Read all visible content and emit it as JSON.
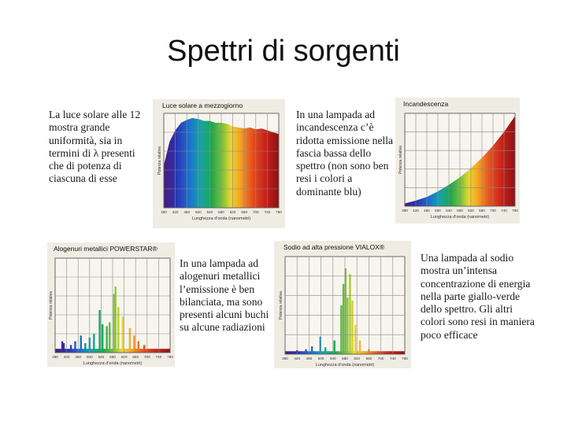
{
  "slide": {
    "title": "Spettri di sorgenti"
  },
  "descriptions": [
    "La luce solare alle 12 mostra grande uniformità, sia in termini di λ presenti che di potenza di ciascuna di esse",
    "In una lampada ad incandescenza c’è ridotta emissione nella fascia bassa dello spettro (non sono ben resi i colori a dominante blu)",
    "In una lampada ad alogenuri metallici l’emissione è ben bilanciata, ma sono presenti alcuni buchi su alcune radiazioni",
    "Una lampada al sodio mostra un’intensa concentrazione di energia nella parte giallo-verde dello spettro. Gli altri colori sono resi in maniera poco efficace"
  ],
  "chart_data": [
    {
      "type": "area",
      "title": "Luce solare a mezzogiorno",
      "ylabel": "Potenza relativa",
      "xlabel": "Lunghezza d'onda (nanometri)",
      "x_ticks": [
        "380",
        "420",
        "460",
        "500",
        "540",
        "580",
        "620",
        "660",
        "700",
        "740",
        "780"
      ],
      "x": [
        380,
        400,
        420,
        440,
        460,
        480,
        500,
        520,
        540,
        560,
        580,
        600,
        620,
        640,
        660,
        680,
        700,
        720,
        740,
        760,
        780
      ],
      "values": [
        0.45,
        0.7,
        0.82,
        0.9,
        0.93,
        0.95,
        0.94,
        0.92,
        0.92,
        0.9,
        0.9,
        0.89,
        0.86,
        0.85,
        0.84,
        0.85,
        0.83,
        0.84,
        0.82,
        0.8,
        0.78
      ],
      "ylim": [
        0,
        1
      ]
    },
    {
      "type": "area",
      "title": "Incandescenza",
      "ylabel": "Potenza relativa",
      "xlabel": "Lunghezza d'onda (nanometri)",
      "x_ticks": [
        "380",
        "420",
        "460",
        "500",
        "540",
        "580",
        "620",
        "660",
        "700",
        "740",
        "780"
      ],
      "x": [
        380,
        420,
        460,
        500,
        540,
        580,
        620,
        660,
        700,
        740,
        780
      ],
      "values": [
        0.03,
        0.06,
        0.1,
        0.16,
        0.23,
        0.31,
        0.41,
        0.52,
        0.65,
        0.8,
        0.97
      ],
      "ylim": [
        0,
        1
      ]
    },
    {
      "type": "bar",
      "title": "Alogenuri metallici POWERSTAR®",
      "ylabel": "Potenza relativa",
      "xlabel": "Lunghezza d'onda (nanometri)",
      "x_ticks": [
        "380",
        "420",
        "460",
        "500",
        "540",
        "580",
        "620",
        "660",
        "700",
        "740",
        "780"
      ],
      "lines": [
        {
          "x": 405,
          "v": 0.12
        },
        {
          "x": 410,
          "v": 0.1
        },
        {
          "x": 435,
          "v": 0.08
        },
        {
          "x": 450,
          "v": 0.12
        },
        {
          "x": 470,
          "v": 0.18
        },
        {
          "x": 485,
          "v": 0.1
        },
        {
          "x": 500,
          "v": 0.16
        },
        {
          "x": 515,
          "v": 0.2
        },
        {
          "x": 535,
          "v": 0.45
        },
        {
          "x": 545,
          "v": 0.3
        },
        {
          "x": 560,
          "v": 0.28
        },
        {
          "x": 570,
          "v": 0.32
        },
        {
          "x": 585,
          "v": 0.62
        },
        {
          "x": 590,
          "v": 0.7
        },
        {
          "x": 600,
          "v": 0.48
        },
        {
          "x": 615,
          "v": 0.38
        },
        {
          "x": 640,
          "v": 0.26
        },
        {
          "x": 655,
          "v": 0.18
        },
        {
          "x": 670,
          "v": 0.12
        },
        {
          "x": 690,
          "v": 0.08
        }
      ],
      "baseline": 0.04,
      "ylim": [
        0,
        1
      ]
    },
    {
      "type": "bar",
      "title": "Sodio ad alta pressione VIALOX®",
      "ylabel": "Potenza relativa",
      "xlabel": "Lunghezza d'onda (nanometri)",
      "x_ticks": [
        "380",
        "420",
        "460",
        "500",
        "540",
        "580",
        "620",
        "660",
        "700",
        "740",
        "780"
      ],
      "lines": [
        {
          "x": 420,
          "v": 0.04
        },
        {
          "x": 450,
          "v": 0.05
        },
        {
          "x": 470,
          "v": 0.08
        },
        {
          "x": 498,
          "v": 0.18
        },
        {
          "x": 515,
          "v": 0.07
        },
        {
          "x": 545,
          "v": 0.14
        },
        {
          "x": 568,
          "v": 0.5
        },
        {
          "x": 575,
          "v": 0.72
        },
        {
          "x": 582,
          "v": 0.88
        },
        {
          "x": 589,
          "v": 0.58
        },
        {
          "x": 597,
          "v": 0.82
        },
        {
          "x": 605,
          "v": 0.55
        },
        {
          "x": 615,
          "v": 0.3
        },
        {
          "x": 630,
          "v": 0.14
        },
        {
          "x": 660,
          "v": 0.05
        },
        {
          "x": 690,
          "v": 0.03
        }
      ],
      "baseline": 0.03,
      "ylim": [
        0,
        1
      ]
    }
  ]
}
